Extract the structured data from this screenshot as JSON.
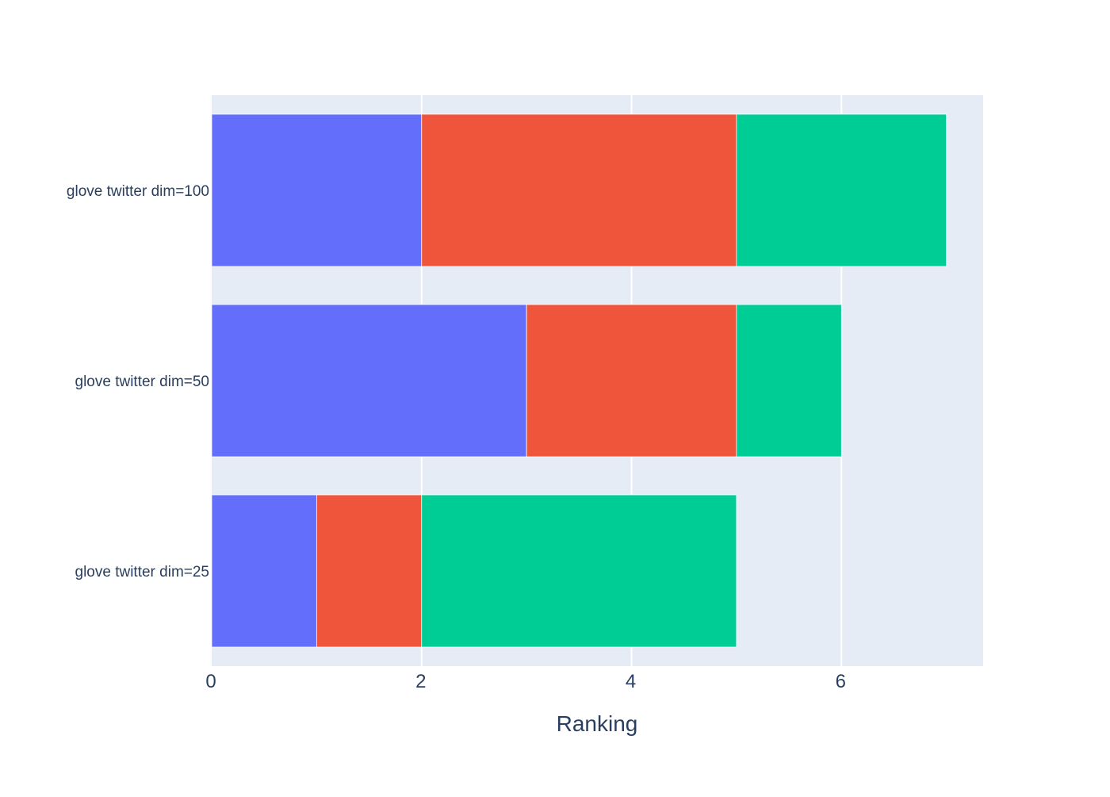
{
  "chart_data": {
    "type": "bar",
    "orientation": "horizontal",
    "stacked": true,
    "categories": [
      "glove twitter dim=25",
      "glove twitter dim=50",
      "glove twitter dim=100"
    ],
    "series": [
      {
        "values": [
          1,
          3,
          2
        ],
        "color": "#636efa"
      },
      {
        "values": [
          1,
          2,
          3
        ],
        "color": "#ef553b"
      },
      {
        "values": [
          3,
          1,
          2
        ],
        "color": "#00cc96"
      }
    ],
    "xlabel": "Ranking",
    "ylabel": "",
    "xlim": [
      0,
      7.35
    ],
    "xticks": [
      0,
      2,
      4,
      6
    ],
    "grid": true,
    "legend": "none",
    "colors": {
      "plot_bg": "#e5ecf6",
      "grid": "#ffffff",
      "text": "#2a3f5f"
    }
  }
}
